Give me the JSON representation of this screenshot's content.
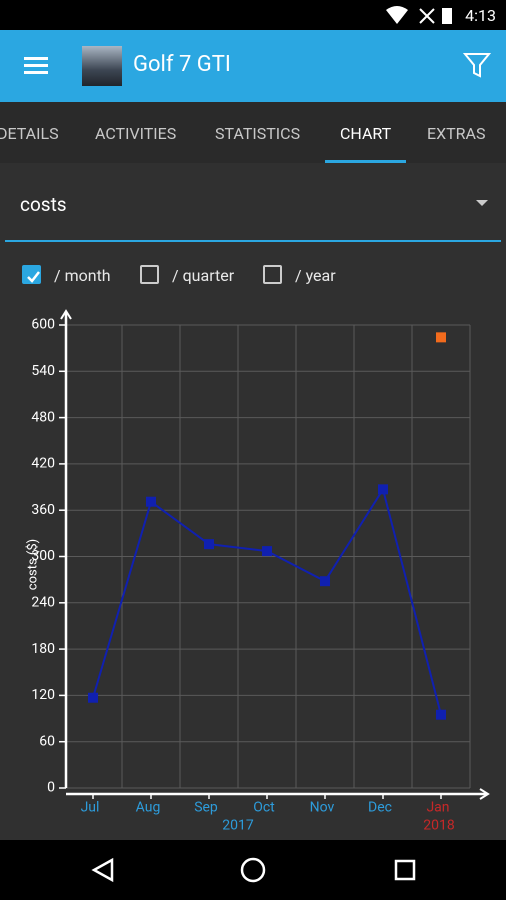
{
  "status_bar": {
    "time": "4:13"
  },
  "toolbar": {
    "title": "Golf 7 GTI"
  },
  "tabs": {
    "items": [
      "DETAILS",
      "ACTIVITIES",
      "STATISTICS",
      "CHART",
      "EXTRAS"
    ],
    "selected": 3
  },
  "dropdown": {
    "value": "costs"
  },
  "options": [
    {
      "label": "/ month",
      "checked": true
    },
    {
      "label": "/ quarter",
      "checked": false
    },
    {
      "label": "/ year",
      "checked": false
    }
  ],
  "chart_data": {
    "type": "line",
    "y_label": "costs ($)",
    "categories": [
      "Jul",
      "Aug",
      "Sep",
      "Oct",
      "Nov",
      "Dec",
      "Jan"
    ],
    "year_labels": [
      "2017",
      "2018"
    ],
    "series": [
      {
        "color": "#1020b0",
        "line": true,
        "values": [
          117,
          371,
          316,
          307,
          268,
          387,
          95
        ]
      },
      {
        "color": "#f26b1d",
        "line": false,
        "values": [
          null,
          null,
          null,
          null,
          null,
          null,
          584
        ]
      }
    ],
    "ylim": [
      0,
      600
    ],
    "yticks": [
      0,
      60,
      120,
      180,
      240,
      300,
      360,
      420,
      480,
      540,
      600
    ],
    "grid": true
  }
}
